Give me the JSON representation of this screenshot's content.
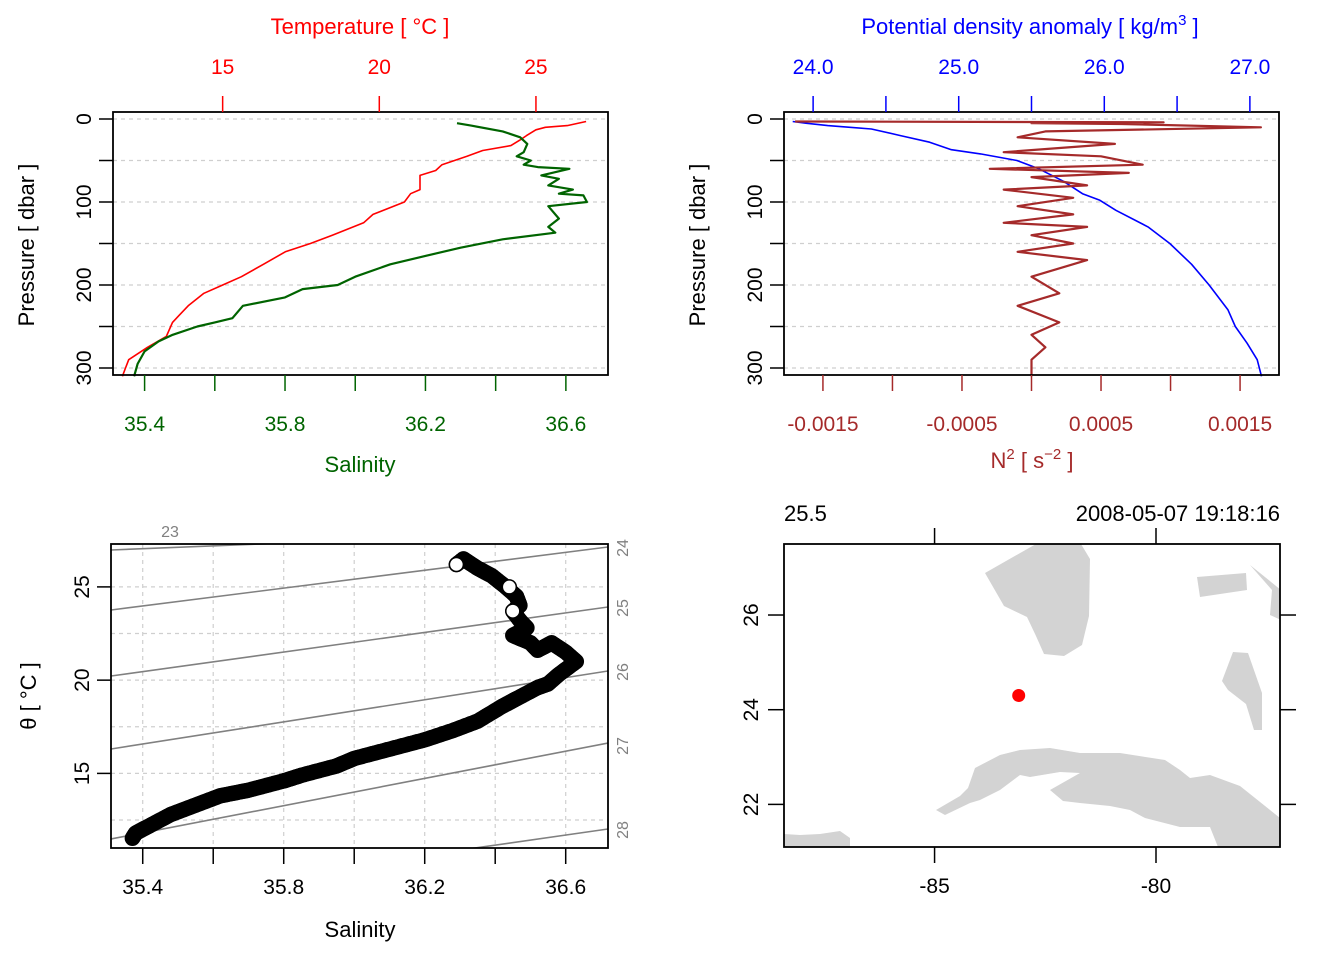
{
  "chart_data": [
    {
      "type": "line",
      "panel": "top-left",
      "title": "",
      "ylabel": "Pressure [ dbar ]",
      "ylim": [
        310,
        0
      ],
      "yticks": [
        0,
        50,
        100,
        150,
        200,
        250,
        300
      ],
      "ytick_labels": [
        "0",
        "",
        "100",
        "",
        "200",
        "",
        "300"
      ],
      "grid": true,
      "top_axis": {
        "label": "Temperature [ °C ]",
        "color": "#ff0000",
        "lim": [
          11.5,
          27.3
        ],
        "ticks": [
          15,
          20,
          25
        ],
        "tick_labels": [
          "15",
          "20",
          "25"
        ]
      },
      "bottom_axis": {
        "label": "Salinity",
        "color": "#006400",
        "lim": [
          35.31,
          36.72
        ],
        "ticks": [
          35.4,
          35.6,
          35.8,
          36.0,
          36.2,
          36.4,
          36.6
        ],
        "tick_labels": [
          "35.4",
          "",
          "35.8",
          "",
          "36.2",
          "",
          "36.6"
        ]
      },
      "series": [
        {
          "name": "Temperature",
          "axis": "top",
          "color": "#ff0000",
          "x": [
            26.6,
            26.0,
            25.3,
            25.0,
            24.7,
            24.5,
            24.2,
            23.3,
            22.8,
            22.0,
            21.8,
            21.3,
            21.3,
            21.0,
            20.8,
            19.8,
            19.5,
            18.5,
            17.8,
            17.0,
            16.3,
            15.6,
            15.0,
            14.4,
            13.9,
            13.6,
            13.4,
            13.2,
            12.6,
            12.0,
            11.9,
            11.8
          ],
          "y": [
            3,
            8,
            10,
            13,
            20,
            25,
            32,
            38,
            45,
            55,
            62,
            68,
            85,
            90,
            100,
            115,
            125,
            140,
            150,
            160,
            175,
            190,
            200,
            210,
            225,
            237,
            245,
            262,
            275,
            290,
            300,
            310
          ]
        },
        {
          "name": "Salinity",
          "axis": "bottom",
          "color": "#006400",
          "x": [
            36.29,
            36.33,
            36.42,
            36.47,
            36.49,
            36.48,
            36.46,
            36.5,
            36.48,
            36.52,
            36.61,
            36.53,
            36.58,
            36.55,
            36.62,
            36.58,
            36.65,
            36.66,
            36.55,
            36.58,
            36.55,
            36.57,
            36.42,
            36.3,
            36.2,
            36.1,
            36.0,
            35.95,
            35.85,
            35.8,
            35.68,
            35.65,
            35.6,
            35.55,
            35.48,
            35.44,
            35.4,
            35.38,
            35.37
          ],
          "y": [
            5,
            8,
            15,
            22,
            30,
            40,
            45,
            50,
            55,
            58,
            60,
            68,
            72,
            80,
            85,
            90,
            92,
            100,
            105,
            120,
            130,
            137,
            145,
            155,
            165,
            175,
            190,
            200,
            205,
            215,
            225,
            240,
            245,
            250,
            260,
            268,
            280,
            295,
            310
          ]
        }
      ]
    },
    {
      "type": "line",
      "panel": "top-right",
      "title": "",
      "ylabel": "Pressure [ dbar ]",
      "ylim": [
        310,
        0
      ],
      "yticks": [
        0,
        50,
        100,
        150,
        200,
        250,
        300
      ],
      "ytick_labels": [
        "0",
        "",
        "100",
        "",
        "200",
        "",
        "300"
      ],
      "grid": true,
      "top_axis": {
        "label": "Potential density anomaly [ kg/m³ ]",
        "color": "#0000ff",
        "lim": [
          23.8,
          27.2
        ],
        "ticks": [
          24.0,
          24.5,
          25.0,
          25.5,
          26.0,
          26.5,
          27.0
        ],
        "tick_labels": [
          "24.0",
          "",
          "25.0",
          "",
          "26.0",
          "",
          "27.0"
        ]
      },
      "bottom_axis": {
        "label": "N² [ s⁻² ]",
        "color": "#a52a2a",
        "lim": [
          -0.00178,
          0.00178
        ],
        "ticks": [
          -0.0015,
          -0.001,
          -0.0005,
          0.0,
          0.0005,
          0.001,
          0.0015
        ],
        "tick_labels": [
          "-0.0015",
          "",
          "-0.0005",
          "",
          "0.0005",
          "",
          "0.0015"
        ]
      },
      "series": [
        {
          "name": "Potential density anomaly",
          "axis": "top",
          "color": "#0000ff",
          "x": [
            23.86,
            23.95,
            24.1,
            24.4,
            24.6,
            24.8,
            24.95,
            25.15,
            25.4,
            25.55,
            25.72,
            25.85,
            25.97,
            26.08,
            26.3,
            26.45,
            26.6,
            26.72,
            26.85,
            26.9,
            26.98,
            27.05,
            27.08
          ],
          "y": [
            3,
            5,
            8,
            12,
            20,
            28,
            37,
            42,
            50,
            60,
            75,
            90,
            98,
            110,
            130,
            150,
            175,
            200,
            230,
            250,
            270,
            290,
            310
          ]
        },
        {
          "name": "N2",
          "axis": "bottom",
          "color": "#a52a2a",
          "x": [
            -0.0017,
            0.00095,
            0.0,
            0.00065,
            0.00165,
            0.0001,
            -0.0001,
            0.0006,
            -0.0002,
            0.0005,
            0.0008,
            -0.0003,
            0.0007,
            0.0,
            0.0004,
            -0.0002,
            0.0003,
            -0.0001,
            0.0003,
            -0.0002,
            0.0004,
            0.0,
            0.0003,
            -0.0001,
            0.0004,
            0.0,
            0.0002,
            -0.0001,
            0.0002,
            0.0,
            0.0001,
            0.0,
            0.0,
            0.0
          ],
          "y": [
            3,
            4,
            5,
            6,
            10,
            15,
            22,
            30,
            40,
            45,
            55,
            60,
            65,
            70,
            80,
            85,
            95,
            105,
            115,
            125,
            130,
            140,
            150,
            160,
            170,
            190,
            210,
            225,
            245,
            260,
            275,
            290,
            300,
            310
          ]
        }
      ]
    },
    {
      "type": "scatter",
      "panel": "bottom-left",
      "title": "",
      "xlabel": "Salinity",
      "ylabel": "θ [ °C ]",
      "xlim": [
        35.31,
        36.72
      ],
      "ylim": [
        11.0,
        27.3
      ],
      "xticks": [
        35.4,
        35.6,
        35.8,
        36.0,
        36.2,
        36.4,
        36.6
      ],
      "xtick_labels": [
        "35.4",
        "",
        "35.8",
        "",
        "36.2",
        "",
        "36.6"
      ],
      "yticks": [
        15,
        20,
        25
      ],
      "ytick_labels": [
        "15",
        "20",
        "25"
      ],
      "grid": true,
      "point_color": "#000000",
      "x": [
        36.29,
        36.31,
        36.35,
        36.39,
        36.43,
        36.46,
        36.47,
        36.45,
        36.47,
        36.49,
        36.45,
        36.5,
        36.52,
        36.56,
        36.6,
        36.63,
        36.58,
        36.55,
        36.52,
        36.46,
        36.42,
        36.35,
        36.28,
        36.2,
        36.1,
        36.0,
        35.95,
        35.85,
        35.8,
        35.7,
        35.62,
        35.55,
        35.48,
        35.42,
        35.38,
        35.37
      ],
      "y": [
        26.2,
        26.5,
        26.0,
        25.6,
        25.0,
        24.5,
        24.0,
        23.7,
        23.2,
        22.8,
        22.4,
        22.0,
        21.6,
        22.0,
        21.5,
        21.0,
        20.3,
        19.8,
        19.6,
        19.0,
        18.6,
        17.8,
        17.3,
        16.8,
        16.3,
        15.8,
        15.4,
        14.9,
        14.6,
        14.1,
        13.8,
        13.3,
        12.8,
        12.2,
        11.8,
        11.5
      ]
    },
    {
      "type": "map",
      "panel": "bottom-right",
      "title": "",
      "top_left_label": "25.5",
      "top_right_label": "2008-05-07 19:18:16",
      "xlim": [
        -88.4,
        -77.2
      ],
      "ylim": [
        21.1,
        27.5
      ],
      "xticks": [
        -85,
        -80
      ],
      "xtick_labels": [
        "-85",
        "-80"
      ],
      "yticks": [
        22,
        24,
        26
      ],
      "ytick_labels": [
        "22",
        "24",
        "26"
      ],
      "land_color": "#d3d3d3",
      "station": {
        "lon": -83.1,
        "lat": 24.3,
        "color": "#ff0000"
      }
    }
  ]
}
